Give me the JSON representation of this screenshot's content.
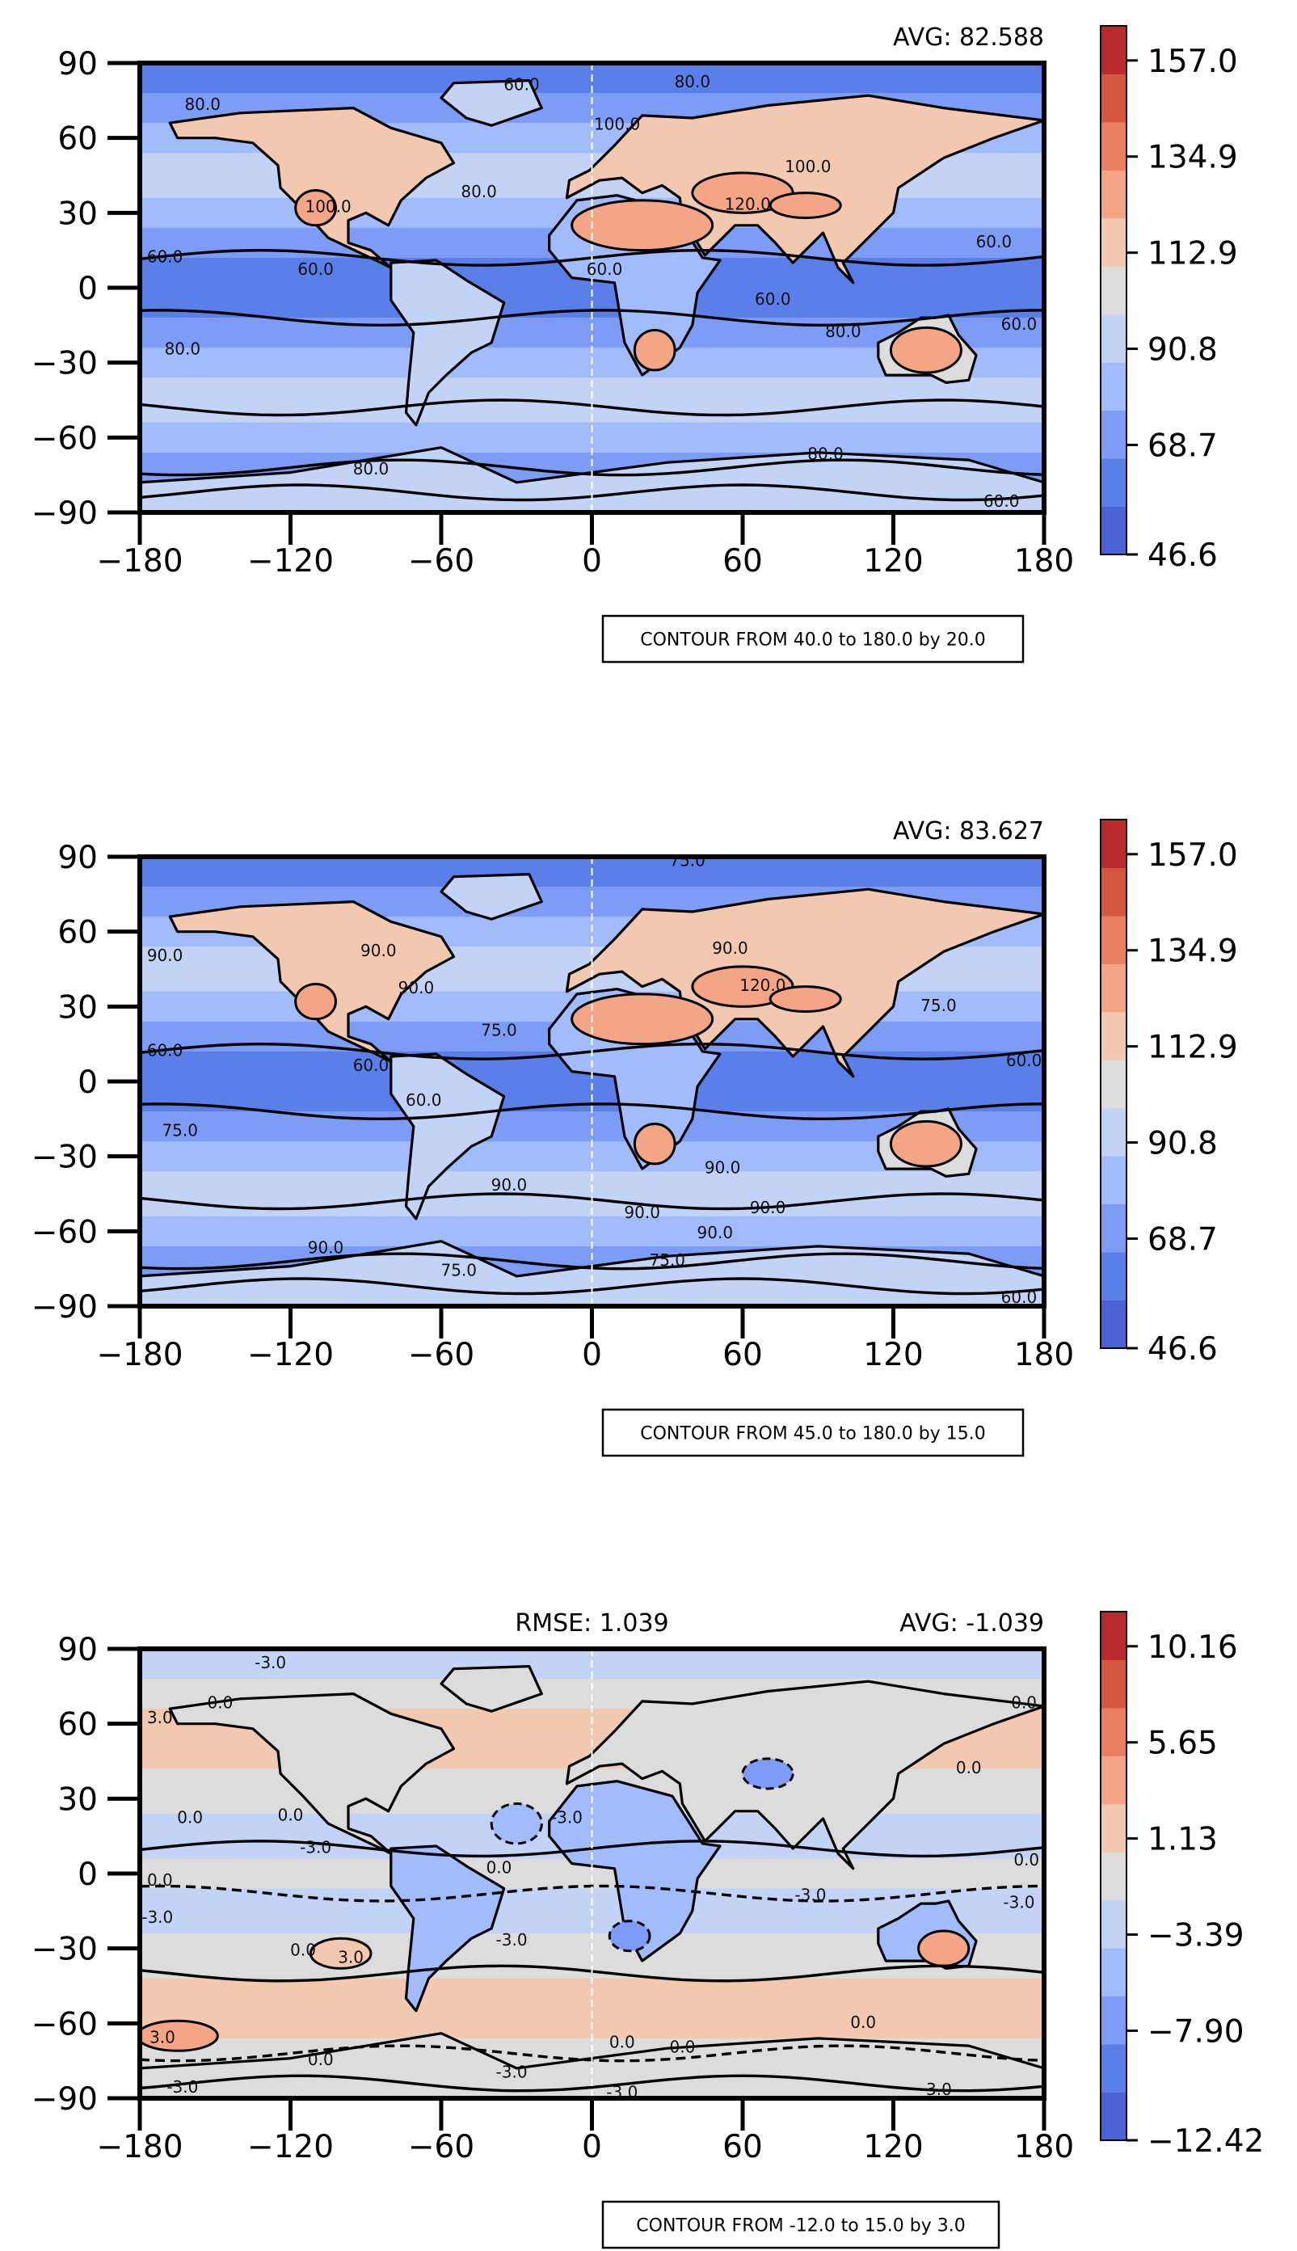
{
  "chart_data": [
    {
      "type": "heatmap",
      "subtype": "filled-contour-map",
      "avg_text": "AVG: 82.588",
      "rmse_text": "",
      "contour_note": "CONTOUR FROM 40.0 to 180.0 by 20.0",
      "x_ticks": [
        "−180",
        "−120",
        "−60",
        "0",
        "60",
        "120",
        "180"
      ],
      "y_ticks": [
        "90",
        "60",
        "30",
        "0",
        "−30",
        "−60",
        "−90"
      ],
      "xlim": [
        -180,
        180
      ],
      "ylim": [
        -90,
        90
      ],
      "colorbar_ticks": [
        "157.0",
        "134.9",
        "112.9",
        "90.8",
        "68.7",
        "46.6"
      ],
      "colorbar_range": [
        46.6,
        168.0
      ],
      "colorbar_levels": 11,
      "contour_labels": [
        {
          "text": "80.0",
          "lon": -155,
          "lat": 73
        },
        {
          "text": "60.0",
          "lon": -28,
          "lat": 81
        },
        {
          "text": "80.0",
          "lon": 40,
          "lat": 82
        },
        {
          "text": "100.0",
          "lon": 10,
          "lat": 65
        },
        {
          "text": "100.0",
          "lon": 86,
          "lat": 48
        },
        {
          "text": "80.0",
          "lon": -45,
          "lat": 38
        },
        {
          "text": "120.0",
          "lon": 62,
          "lat": 33
        },
        {
          "text": "100.0",
          "lon": -105,
          "lat": 32
        },
        {
          "text": "60.0",
          "lon": -170,
          "lat": 12
        },
        {
          "text": "60.0",
          "lon": -110,
          "lat": 7
        },
        {
          "text": "60.0",
          "lon": 5,
          "lat": 7
        },
        {
          "text": "60.0",
          "lon": 160,
          "lat": 18
        },
        {
          "text": "60.0",
          "lon": 72,
          "lat": -5
        },
        {
          "text": "80.0",
          "lon": 100,
          "lat": -18
        },
        {
          "text": "60.0",
          "lon": 170,
          "lat": -15
        },
        {
          "text": "80.0",
          "lon": -163,
          "lat": -25
        },
        {
          "text": "80.0",
          "lon": -88,
          "lat": -73
        },
        {
          "text": "80.0",
          "lon": 93,
          "lat": -67
        },
        {
          "text": "60.0",
          "lon": 163,
          "lat": -86
        }
      ]
    },
    {
      "type": "heatmap",
      "subtype": "filled-contour-map",
      "avg_text": "AVG: 83.627",
      "rmse_text": "",
      "contour_note": "CONTOUR FROM 45.0 to 180.0 by 15.0",
      "x_ticks": [
        "−180",
        "−120",
        "−60",
        "0",
        "60",
        "120",
        "180"
      ],
      "y_ticks": [
        "90",
        "60",
        "30",
        "0",
        "−30",
        "−60",
        "−90"
      ],
      "xlim": [
        -180,
        180
      ],
      "ylim": [
        -90,
        90
      ],
      "colorbar_ticks": [
        "157.0",
        "134.9",
        "112.9",
        "90.8",
        "68.7",
        "46.6"
      ],
      "colorbar_range": [
        46.6,
        168.0
      ],
      "colorbar_levels": 11,
      "contour_labels": [
        {
          "text": "75.0",
          "lon": 38,
          "lat": 88
        },
        {
          "text": "90.0",
          "lon": -170,
          "lat": 50
        },
        {
          "text": "90.0",
          "lon": -85,
          "lat": 52
        },
        {
          "text": "90.0",
          "lon": -70,
          "lat": 37
        },
        {
          "text": "90.0",
          "lon": 55,
          "lat": 53
        },
        {
          "text": "120.0",
          "lon": 68,
          "lat": 38
        },
        {
          "text": "75.0",
          "lon": 138,
          "lat": 30
        },
        {
          "text": "75.0",
          "lon": -37,
          "lat": 20
        },
        {
          "text": "60.0",
          "lon": -170,
          "lat": 12
        },
        {
          "text": "60.0",
          "lon": -88,
          "lat": 6
        },
        {
          "text": "60.0",
          "lon": -67,
          "lat": -8
        },
        {
          "text": "60.0",
          "lon": 172,
          "lat": 8
        },
        {
          "text": "75.0",
          "lon": -164,
          "lat": -20
        },
        {
          "text": "90.0",
          "lon": 52,
          "lat": -35
        },
        {
          "text": "90.0",
          "lon": -33,
          "lat": -42
        },
        {
          "text": "90.0",
          "lon": 70,
          "lat": -51
        },
        {
          "text": "90.0",
          "lon": 20,
          "lat": -53
        },
        {
          "text": "90.0",
          "lon": 49,
          "lat": -61
        },
        {
          "text": "90.0",
          "lon": -106,
          "lat": -67
        },
        {
          "text": "75.0",
          "lon": 30,
          "lat": -72
        },
        {
          "text": "75.0",
          "lon": -53,
          "lat": -76
        },
        {
          "text": "60.0",
          "lon": 170,
          "lat": -87
        }
      ]
    },
    {
      "type": "heatmap",
      "subtype": "filled-contour-map",
      "avg_text": "AVG: -1.039",
      "rmse_text": "RMSE: 1.039",
      "contour_note": "CONTOUR FROM -12.0 to 15.0 by 3.0",
      "x_ticks": [
        "−180",
        "−120",
        "−60",
        "0",
        "60",
        "120",
        "180"
      ],
      "y_ticks": [
        "90",
        "60",
        "30",
        "0",
        "−30",
        "−60",
        "−90"
      ],
      "xlim": [
        -180,
        180
      ],
      "ylim": [
        -90,
        90
      ],
      "colorbar_ticks": [
        "10.16",
        "5.65",
        "1.13",
        "−3.39",
        "−7.90",
        "−12.42"
      ],
      "colorbar_range": [
        -12.42,
        12.4
      ],
      "colorbar_levels": 11,
      "contour_labels": [
        {
          "text": "-3.0",
          "lon": -128,
          "lat": 84
        },
        {
          "text": "3.0",
          "lon": -172,
          "lat": 62
        },
        {
          "text": "0.0",
          "lon": -148,
          "lat": 68
        },
        {
          "text": "0.0",
          "lon": -160,
          "lat": 22
        },
        {
          "text": "0.0",
          "lon": -120,
          "lat": 23
        },
        {
          "text": "-3.0",
          "lon": -110,
          "lat": 10
        },
        {
          "text": "-3.0",
          "lon": -10,
          "lat": 22
        },
        {
          "text": "0.0",
          "lon": 150,
          "lat": 42
        },
        {
          "text": "0.0",
          "lon": 172,
          "lat": 68
        },
        {
          "text": "0.0",
          "lon": -172,
          "lat": -3
        },
        {
          "text": "0.0",
          "lon": -37,
          "lat": 2
        },
        {
          "text": "0.0",
          "lon": 173,
          "lat": 5
        },
        {
          "text": "-3.0",
          "lon": 87,
          "lat": -9
        },
        {
          "text": "-3.0",
          "lon": 170,
          "lat": -12
        },
        {
          "text": "-3.0",
          "lon": -173,
          "lat": -18
        },
        {
          "text": "0.0",
          "lon": -115,
          "lat": -31
        },
        {
          "text": "3.0",
          "lon": -96,
          "lat": -34
        },
        {
          "text": "-3.0",
          "lon": -32,
          "lat": -27
        },
        {
          "text": "0.0",
          "lon": 108,
          "lat": -60
        },
        {
          "text": "3.0",
          "lon": -171,
          "lat": -66
        },
        {
          "text": "0.0",
          "lon": -108,
          "lat": -75
        },
        {
          "text": "0.0",
          "lon": 12,
          "lat": -68
        },
        {
          "text": "0.0",
          "lon": 36,
          "lat": -70
        },
        {
          "text": "-3.0",
          "lon": -32,
          "lat": -80
        },
        {
          "text": "-3.0",
          "lon": 12,
          "lat": -88
        },
        {
          "text": "-3.0",
          "lon": 137,
          "lat": -87
        },
        {
          "text": "-3.0",
          "lon": -163,
          "lat": -86
        }
      ]
    }
  ],
  "colors": {
    "sequential": [
      "#4a62d6",
      "#5b7fe8",
      "#7c9cf5",
      "#a1bbfc",
      "#c3d3f5",
      "#dcdcdc",
      "#f3c8b0",
      "#f4a585",
      "#e97e61",
      "#d3573f",
      "#b82a2b"
    ],
    "diverging": [
      "#4a62d6",
      "#5b7fe8",
      "#7c9cf5",
      "#a1bbfc",
      "#c3d3f5",
      "#dcdcdc",
      "#f3c8b0",
      "#f4a585",
      "#e97e61",
      "#d3573f",
      "#b82a2b"
    ]
  }
}
